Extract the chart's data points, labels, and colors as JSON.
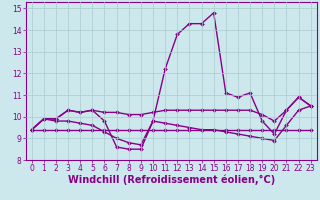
{
  "xlabel": "Windchill (Refroidissement éolien,°C)",
  "background_color": "#cce8ec",
  "grid_color": "#aaccd0",
  "line_color": "#880088",
  "xlim": [
    -0.5,
    23.5
  ],
  "ylim": [
    8,
    15.3
  ],
  "xticks": [
    0,
    1,
    2,
    3,
    4,
    5,
    6,
    7,
    8,
    9,
    10,
    11,
    12,
    13,
    14,
    15,
    16,
    17,
    18,
    19,
    20,
    21,
    22,
    23
  ],
  "yticks": [
    8,
    9,
    10,
    11,
    12,
    13,
    14,
    15
  ],
  "series1": [
    9.4,
    9.9,
    9.9,
    10.3,
    10.2,
    10.3,
    9.8,
    8.6,
    8.5,
    8.5,
    9.8,
    12.2,
    13.8,
    14.3,
    14.3,
    14.8,
    11.1,
    10.9,
    11.1,
    9.8,
    9.2,
    10.3,
    10.9,
    10.5
  ],
  "series2": [
    9.4,
    9.9,
    9.9,
    10.3,
    10.2,
    10.3,
    10.2,
    10.2,
    10.1,
    10.1,
    10.2,
    10.3,
    10.3,
    10.3,
    10.3,
    10.3,
    10.3,
    10.3,
    10.3,
    10.1,
    9.8,
    10.3,
    10.9,
    10.5
  ],
  "series3": [
    9.4,
    9.9,
    9.8,
    9.8,
    9.7,
    9.6,
    9.3,
    9.0,
    8.8,
    8.7,
    9.8,
    9.7,
    9.6,
    9.5,
    9.4,
    9.4,
    9.3,
    9.2,
    9.1,
    9.0,
    8.9,
    9.6,
    10.3,
    10.5
  ],
  "series4": [
    9.4,
    9.4,
    9.4,
    9.4,
    9.4,
    9.4,
    9.4,
    9.4,
    9.4,
    9.4,
    9.4,
    9.4,
    9.4,
    9.4,
    9.4,
    9.4,
    9.4,
    9.4,
    9.4,
    9.4,
    9.4,
    9.4,
    9.4,
    9.4
  ],
  "marker": "D",
  "markersize": 2.0,
  "linewidth": 1.0,
  "tick_fontsize": 5.5,
  "label_fontsize": 7.0
}
